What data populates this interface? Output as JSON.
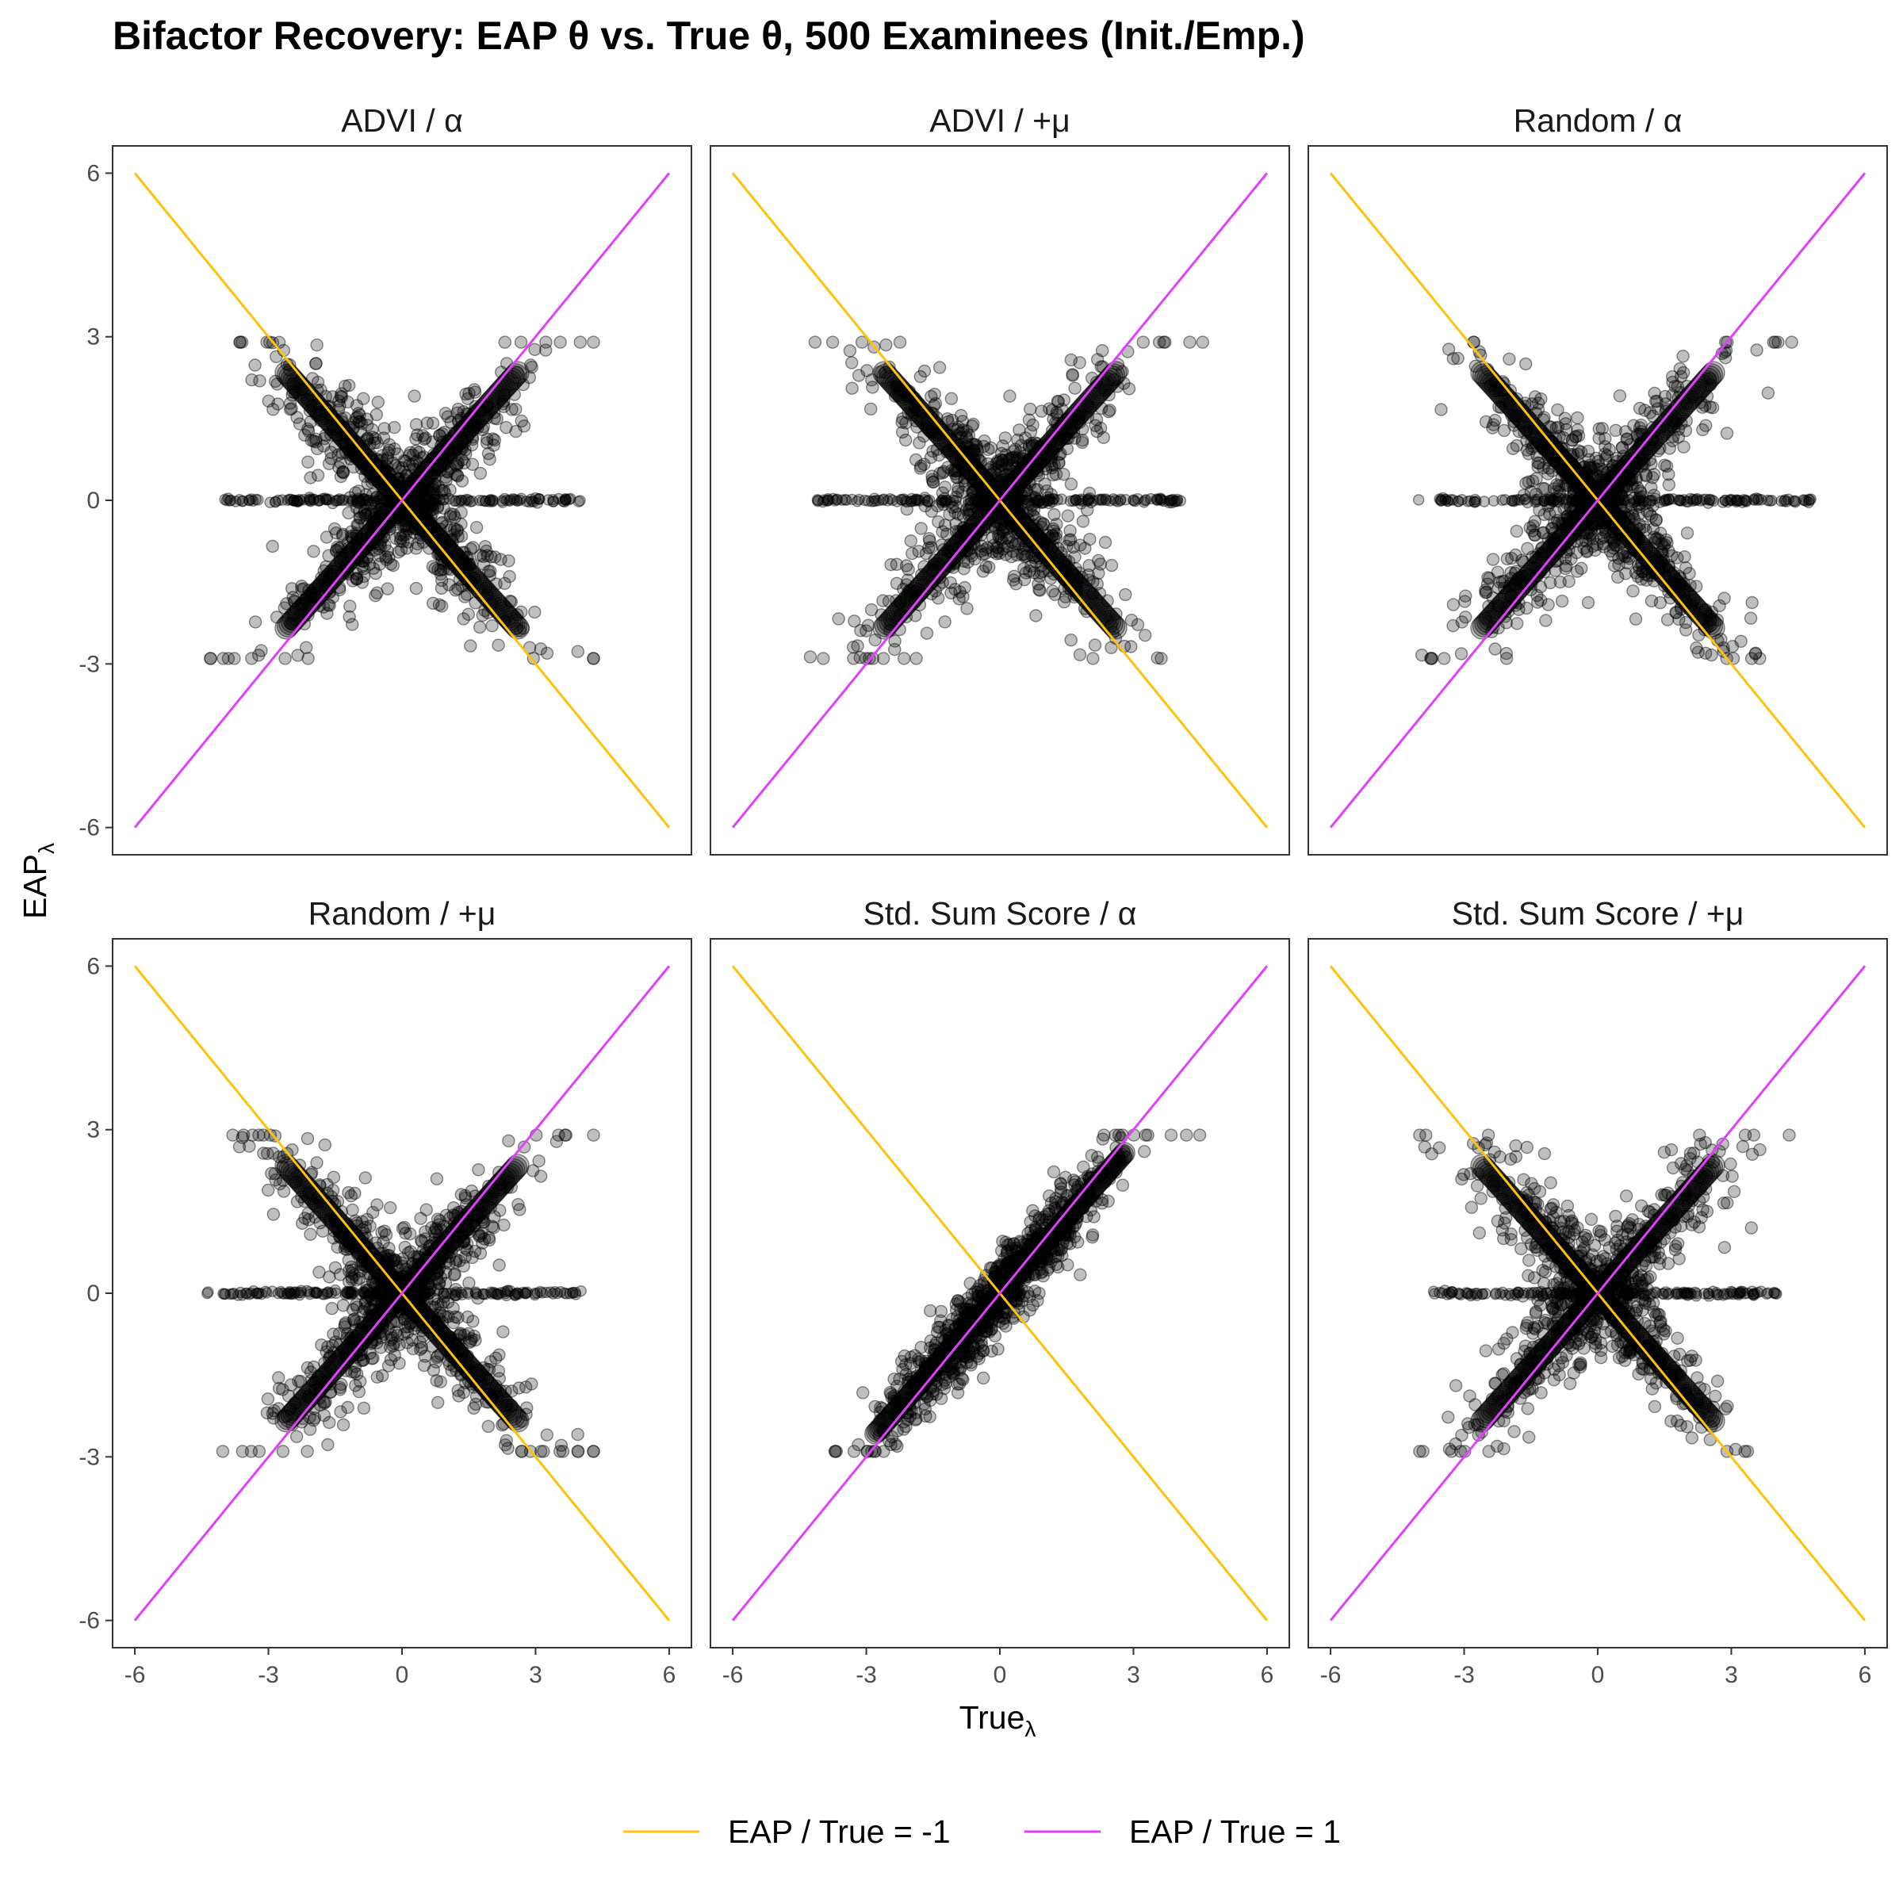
{
  "chart_data": {
    "type": "scatter",
    "title": "Bifactor Recovery: EAP θ vs. True θ, 500 Examinees (Init./Emp.)",
    "xlabel": "True",
    "xlabel_sub": "λ",
    "ylabel": "EAP",
    "ylabel_sub": "λ",
    "xlim": [
      -6.5,
      6.5
    ],
    "ylim": [
      -6.5,
      6.5
    ],
    "x_ticks": [
      -6,
      -3,
      0,
      3,
      6
    ],
    "y_ticks": [
      -6,
      -3,
      0,
      3,
      6
    ],
    "x_tick_labels": [
      "-6",
      "-3",
      "0",
      "3",
      "6"
    ],
    "y_tick_labels": [
      "-6",
      "-3",
      "0",
      "3",
      "6"
    ],
    "grid": false,
    "legend_position": "bottom",
    "point_color": "#000000",
    "point_alpha": 0.25,
    "reference_lines": [
      {
        "name": "EAP / True = -1",
        "slope": -1,
        "x": [
          -6,
          6
        ],
        "y": [
          6,
          -6
        ],
        "color": "#FFC20A"
      },
      {
        "name": "EAP / True = 1",
        "slope": 1,
        "x": [
          -6,
          6
        ],
        "y": [
          -6,
          6
        ],
        "color": "#E040FB"
      }
    ],
    "panels": [
      {
        "label": "ADVI / α",
        "pattern": "x",
        "x_extent": [
          -4.3,
          4.3
        ],
        "y_extent": [
          -3.5,
          3.3
        ]
      },
      {
        "label": "ADVI / +μ",
        "pattern": "x",
        "x_extent": [
          -4.3,
          4.6
        ],
        "y_extent": [
          -3.2,
          3.3
        ]
      },
      {
        "label": "Random / α",
        "pattern": "x",
        "x_extent": [
          -4.4,
          5.0
        ],
        "y_extent": [
          -3.7,
          3.5
        ]
      },
      {
        "label": "Random / +μ",
        "pattern": "x",
        "x_extent": [
          -4.6,
          4.3
        ],
        "y_extent": [
          -3.2,
          3.2
        ]
      },
      {
        "label": "Std. Sum Score / α",
        "pattern": "diagonal",
        "x_extent": [
          -3.7,
          4.6
        ],
        "y_extent": [
          -3.1,
          3.0
        ]
      },
      {
        "label": "Std. Sum Score / +μ",
        "pattern": "x",
        "x_extent": [
          -4.0,
          4.3
        ],
        "y_extent": [
          -3.2,
          3.1
        ]
      }
    ]
  }
}
